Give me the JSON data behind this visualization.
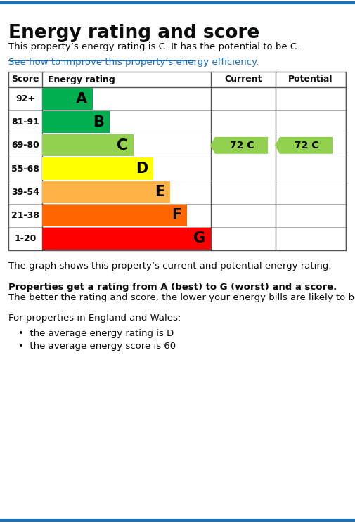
{
  "title": "Energy rating and score",
  "subtitle": "This property’s energy rating is C. It has the potential to be C.",
  "link_text": "See how to improve this property’s energy efficiency.",
  "ratings": [
    "A",
    "B",
    "C",
    "D",
    "E",
    "F",
    "G"
  ],
  "score_ranges": [
    "92+",
    "81-91",
    "69-80",
    "55-68",
    "39-54",
    "21-38",
    "1-20"
  ],
  "bar_colors": [
    "#00b050",
    "#00b050",
    "#92d050",
    "#ffff00",
    "#ffb347",
    "#ff6600",
    "#ff0000"
  ],
  "bar_widths": [
    1.5,
    2.0,
    2.7,
    3.3,
    3.8,
    4.3,
    5.0
  ],
  "current_rating": "C",
  "current_score": 72,
  "potential_rating": "C",
  "potential_score": 72,
  "arrow_color": "#92d050",
  "col_header_score": "Score",
  "col_header_rating": "Energy rating",
  "col_header_current": "Current",
  "col_header_potential": "Potential",
  "footer_text1": "The graph shows this property’s current and potential energy rating.",
  "footer_bold": "Properties get a rating from A (best) to G (worst) and a score.",
  "footer_text2": " The better the rating and score, the lower your energy bills are likely to be.",
  "footer_text3": "For properties in England and Wales:",
  "bullet1": "the average energy rating is D",
  "bullet2": "the average energy score is 60",
  "bg_color": "#ffffff",
  "border_color": "#1d70b8",
  "text_color": "#0b0c0c",
  "link_color": "#1d70b8"
}
